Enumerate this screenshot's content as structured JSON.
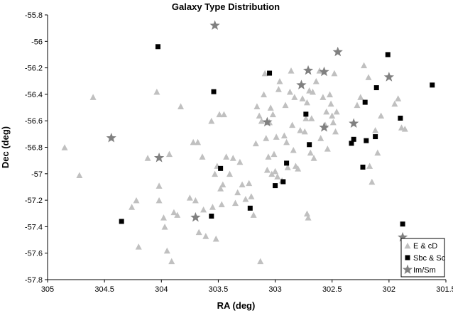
{
  "chart_data": {
    "type": "scatter",
    "title": "Galaxy Type Distribution",
    "xlabel": "RA (deg)",
    "ylabel": "Dec (deg)",
    "xlim": [
      305,
      301.5
    ],
    "ylim": [
      -57.8,
      -55.8
    ],
    "x_reversed": true,
    "grid": false,
    "legend_position": "right",
    "x_ticks": [
      "305",
      "304.5",
      "304",
      "303.5",
      "303",
      "302.5",
      "302",
      "301.5"
    ],
    "y_ticks": [
      "-55.8",
      "-56",
      "-56.2",
      "-56.4",
      "-56.6",
      "-56.8",
      "-57",
      "-57.2",
      "-57.4",
      "-57.6",
      "-57.8"
    ],
    "series": [
      {
        "name": "E & cD",
        "marker": "triangle",
        "color": "#c0c0c0",
        "points": [
          [
            304.85,
            -56.8
          ],
          [
            304.72,
            -57.01
          ],
          [
            304.6,
            -56.42
          ],
          [
            304.26,
            -57.25
          ],
          [
            304.22,
            -57.2
          ],
          [
            304.2,
            -57.55
          ],
          [
            304.12,
            -56.88
          ],
          [
            304.04,
            -56.38
          ],
          [
            304.02,
            -57.2
          ],
          [
            304.02,
            -57.09
          ],
          [
            303.98,
            -57.33
          ],
          [
            303.97,
            -57.4
          ],
          [
            303.95,
            -57.58
          ],
          [
            303.93,
            -56.85
          ],
          [
            303.91,
            -57.66
          ],
          [
            303.89,
            -57.29
          ],
          [
            303.86,
            -57.31
          ],
          [
            303.83,
            -56.49
          ],
          [
            303.75,
            -57.18
          ],
          [
            303.72,
            -56.76
          ],
          [
            303.7,
            -57.2
          ],
          [
            303.68,
            -56.76
          ],
          [
            303.67,
            -57.44
          ],
          [
            303.64,
            -56.87
          ],
          [
            303.63,
            -57.27
          ],
          [
            303.61,
            -57.47
          ],
          [
            303.56,
            -56.6
          ],
          [
            303.55,
            -57.25
          ],
          [
            303.53,
            -57.0
          ],
          [
            303.52,
            -57.49
          ],
          [
            303.51,
            -56.94
          ],
          [
            303.49,
            -56.55
          ],
          [
            303.48,
            -57.11
          ],
          [
            303.47,
            -57.23
          ],
          [
            303.46,
            -57.08
          ],
          [
            303.45,
            -56.55
          ],
          [
            303.43,
            -56.87
          ],
          [
            303.4,
            -57.0
          ],
          [
            303.37,
            -56.88
          ],
          [
            303.35,
            -57.22
          ],
          [
            303.33,
            -57.14
          ],
          [
            303.31,
            -56.91
          ],
          [
            303.29,
            -57.08
          ],
          [
            303.26,
            -57.19
          ],
          [
            303.23,
            -57.07
          ],
          [
            303.21,
            -57.17
          ],
          [
            303.19,
            -57.31
          ],
          [
            303.17,
            -56.77
          ],
          [
            303.16,
            -56.49
          ],
          [
            303.14,
            -56.56
          ],
          [
            303.13,
            -57.66
          ],
          [
            303.12,
            -56.6
          ],
          [
            303.1,
            -56.4
          ],
          [
            303.09,
            -56.24
          ],
          [
            303.08,
            -56.73
          ],
          [
            303.07,
            -56.97
          ],
          [
            303.06,
            -56.87
          ],
          [
            303.05,
            -56.61
          ],
          [
            303.04,
            -56.5
          ],
          [
            303.03,
            -57.0
          ],
          [
            303.02,
            -56.55
          ],
          [
            303.01,
            -56.85
          ],
          [
            303.0,
            -56.98
          ],
          [
            302.99,
            -56.72
          ],
          [
            302.98,
            -57.02
          ],
          [
            302.97,
            -56.36
          ],
          [
            302.96,
            -56.3
          ],
          [
            302.94,
            -57.05
          ],
          [
            302.92,
            -56.71
          ],
          [
            302.91,
            -56.48
          ],
          [
            302.9,
            -56.76
          ],
          [
            302.89,
            -56.95
          ],
          [
            302.87,
            -56.38
          ],
          [
            302.86,
            -56.22
          ],
          [
            302.85,
            -56.63
          ],
          [
            302.84,
            -56.82
          ],
          [
            302.83,
            -56.42
          ],
          [
            302.82,
            -56.94
          ],
          [
            302.8,
            -56.96
          ],
          [
            302.78,
            -56.67
          ],
          [
            302.76,
            -56.43
          ],
          [
            302.74,
            -56.68
          ],
          [
            302.73,
            -56.58
          ],
          [
            302.72,
            -56.46
          ],
          [
            302.71,
            -57.33
          ],
          [
            302.7,
            -56.37
          ],
          [
            302.69,
            -56.84
          ],
          [
            302.68,
            -56.58
          ],
          [
            302.67,
            -56.38
          ],
          [
            302.66,
            -56.88
          ],
          [
            302.64,
            -56.3
          ],
          [
            302.61,
            -56.22
          ],
          [
            302.6,
            -56.73
          ],
          [
            302.58,
            -56.42
          ],
          [
            302.56,
            -56.63
          ],
          [
            302.55,
            -56.53
          ],
          [
            302.54,
            -56.81
          ],
          [
            302.52,
            -56.4
          ],
          [
            302.51,
            -56.47
          ],
          [
            302.5,
            -56.56
          ],
          [
            302.49,
            -56.61
          ],
          [
            302.48,
            -56.24
          ],
          [
            302.47,
            -56.68
          ],
          [
            302.46,
            -56.53
          ],
          [
            302.28,
            -56.48
          ],
          [
            302.25,
            -56.42
          ],
          [
            302.22,
            -56.18
          ],
          [
            302.18,
            -56.27
          ],
          [
            302.17,
            -56.94
          ],
          [
            302.15,
            -57.06
          ],
          [
            302.12,
            -56.67
          ],
          [
            302.1,
            -56.84
          ],
          [
            302.07,
            -56.56
          ],
          [
            301.95,
            -56.47
          ],
          [
            301.92,
            -56.43
          ],
          [
            301.89,
            -56.65
          ],
          [
            301.86,
            -56.66
          ],
          [
            302.72,
            -57.3
          ]
        ]
      },
      {
        "name": "Sbc & Sc",
        "marker": "square",
        "color": "#000000",
        "points": [
          [
            304.35,
            -57.36
          ],
          [
            304.03,
            -56.04
          ],
          [
            303.56,
            -57.32
          ],
          [
            303.54,
            -56.38
          ],
          [
            303.48,
            -56.96
          ],
          [
            303.22,
            -57.26
          ],
          [
            303.05,
            -56.24
          ],
          [
            303.0,
            -57.09
          ],
          [
            302.93,
            -57.06
          ],
          [
            302.9,
            -56.92
          ],
          [
            302.73,
            -56.55
          ],
          [
            302.7,
            -56.78
          ],
          [
            302.33,
            -56.77
          ],
          [
            302.31,
            -56.74
          ],
          [
            302.23,
            -56.95
          ],
          [
            302.21,
            -56.46
          ],
          [
            302.2,
            -56.75
          ],
          [
            302.12,
            -56.72
          ],
          [
            302.11,
            -56.35
          ],
          [
            302.01,
            -56.1
          ],
          [
            301.9,
            -56.58
          ],
          [
            301.88,
            -57.38
          ],
          [
            301.62,
            -56.33
          ]
        ]
      },
      {
        "name": "Im/Sm",
        "marker": "star",
        "color": "#808080",
        "points": [
          [
            304.44,
            -56.73
          ],
          [
            304.02,
            -56.88
          ],
          [
            303.7,
            -57.33
          ],
          [
            303.53,
            -55.88
          ],
          [
            303.07,
            -56.61
          ],
          [
            302.77,
            -56.33
          ],
          [
            302.71,
            -56.22
          ],
          [
            302.57,
            -56.23
          ],
          [
            302.57,
            -56.65
          ],
          [
            302.45,
            -56.08
          ],
          [
            302.31,
            -56.62
          ],
          [
            302.0,
            -56.27
          ],
          [
            301.88,
            -57.48
          ]
        ]
      }
    ]
  }
}
